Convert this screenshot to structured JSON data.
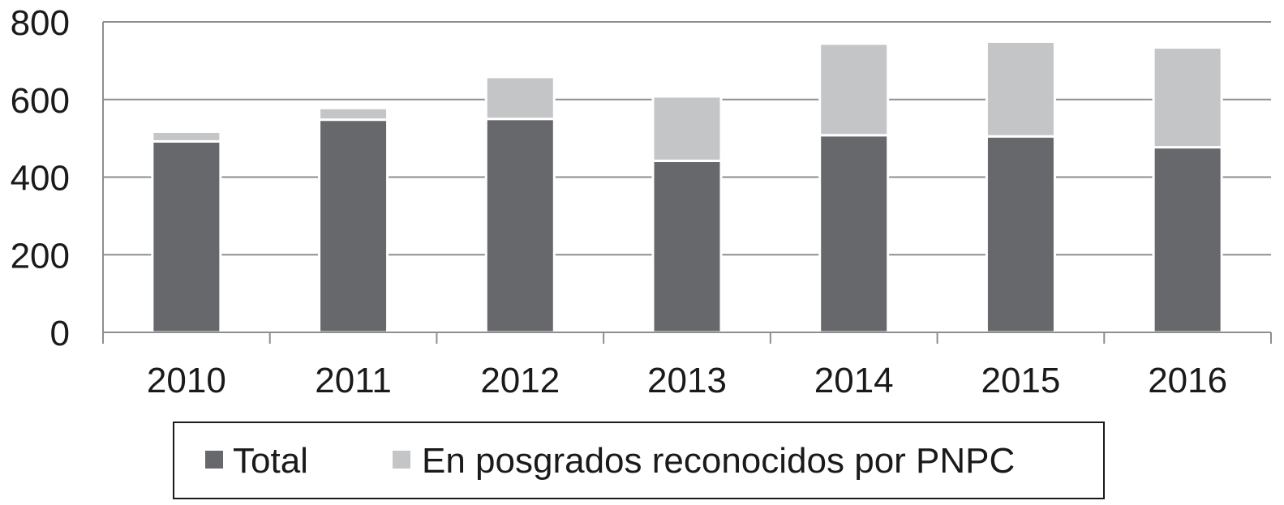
{
  "chart_data": {
    "type": "bar",
    "stacked": true,
    "title": "",
    "xlabel": "",
    "ylabel": "",
    "categories": [
      "2010",
      "2011",
      "2012",
      "2013",
      "2014",
      "2015",
      "2016"
    ],
    "series": [
      {
        "name": "Total",
        "color": "#67686c",
        "values": [
          492,
          548,
          550,
          442,
          508,
          505,
          477
        ]
      },
      {
        "name": "En posgrados reconocidos por PNPC",
        "color": "#c4c5c7",
        "values": [
          25,
          30,
          108,
          166,
          236,
          244,
          257
        ]
      }
    ],
    "ylim": [
      0,
      800
    ],
    "yticks": [
      0,
      200,
      400,
      600,
      800
    ],
    "grid": true,
    "legend": "bottom"
  }
}
